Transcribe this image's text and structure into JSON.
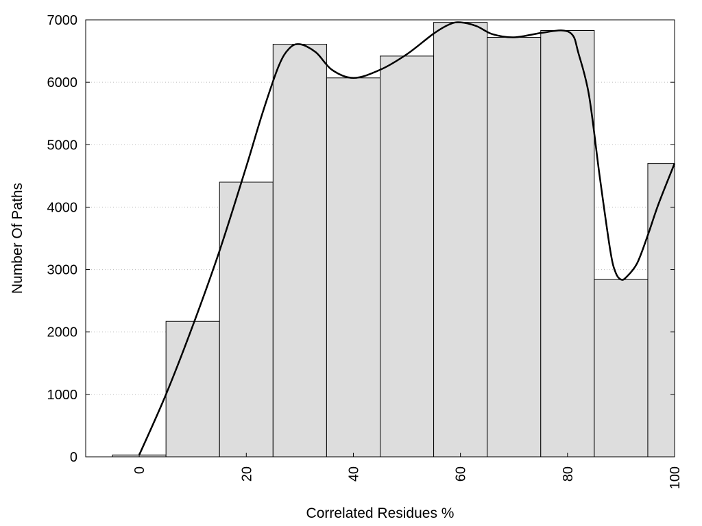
{
  "chart_data": {
    "type": "bar",
    "title": "",
    "xlabel": "Correlated Residues %",
    "ylabel": "Number Of Paths",
    "x": [
      0,
      10,
      20,
      30,
      40,
      50,
      60,
      70,
      80,
      90,
      100
    ],
    "values": [
      30,
      2170,
      4400,
      6610,
      6070,
      6420,
      6960,
      6720,
      6830,
      2840,
      4700
    ],
    "bar_width": 10,
    "xlim": [
      -10,
      100
    ],
    "ylim": [
      0,
      7000
    ],
    "xticks": [
      0,
      20,
      40,
      60,
      80,
      100
    ],
    "xtick_labels": [
      "0",
      "20",
      "40",
      "60",
      "80",
      "100"
    ],
    "yticks": [
      0,
      1000,
      2000,
      3000,
      4000,
      5000,
      6000,
      7000
    ],
    "ytick_labels": [
      "0",
      "1000",
      "2000",
      "3000",
      "4000",
      "5000",
      "6000",
      "7000"
    ],
    "grid": "horizontal dotted",
    "legend": "none",
    "curve": [
      [
        0,
        30
      ],
      [
        5,
        1000
      ],
      [
        10,
        2100
      ],
      [
        15,
        3300
      ],
      [
        20,
        4650
      ],
      [
        23,
        5500
      ],
      [
        26,
        6250
      ],
      [
        28,
        6540
      ],
      [
        30,
        6610
      ],
      [
        33,
        6480
      ],
      [
        36,
        6200
      ],
      [
        40,
        6070
      ],
      [
        45,
        6200
      ],
      [
        50,
        6450
      ],
      [
        55,
        6780
      ],
      [
        58,
        6930
      ],
      [
        60,
        6960
      ],
      [
        63,
        6900
      ],
      [
        66,
        6770
      ],
      [
        70,
        6720
      ],
      [
        75,
        6790
      ],
      [
        79,
        6830
      ],
      [
        81,
        6750
      ],
      [
        82,
        6480
      ],
      [
        84,
        5800
      ],
      [
        86,
        4500
      ],
      [
        88,
        3300
      ],
      [
        89,
        2950
      ],
      [
        90,
        2840
      ],
      [
        91,
        2880
      ],
      [
        93,
        3100
      ],
      [
        95,
        3550
      ],
      [
        97,
        4050
      ],
      [
        100,
        4700
      ]
    ],
    "colors": {
      "bar_fill": "#dddddd",
      "bar_stroke": "#000000",
      "curve": "#000000",
      "grid": "#bbbbbb"
    }
  }
}
